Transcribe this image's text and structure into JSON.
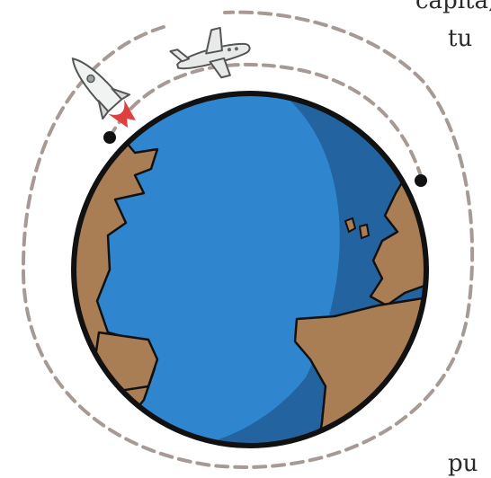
{
  "text_fragments": [
    "capita,",
    "tu",
    "pu"
  ],
  "colors": {
    "ocean_light": "#2f86cf",
    "ocean_dark": "#23639f",
    "land": "#a97e55",
    "outline": "#111111",
    "orbit_dash": "#a79a94",
    "plane": "#e8eaea",
    "rocket": "#f1f3f3",
    "rocket_flame": "#e0403d",
    "text": "#2a2a2a"
  },
  "icons": {
    "earth": "earth-globe-icon",
    "plane": "airplane-icon",
    "rocket": "rocket-icon"
  }
}
